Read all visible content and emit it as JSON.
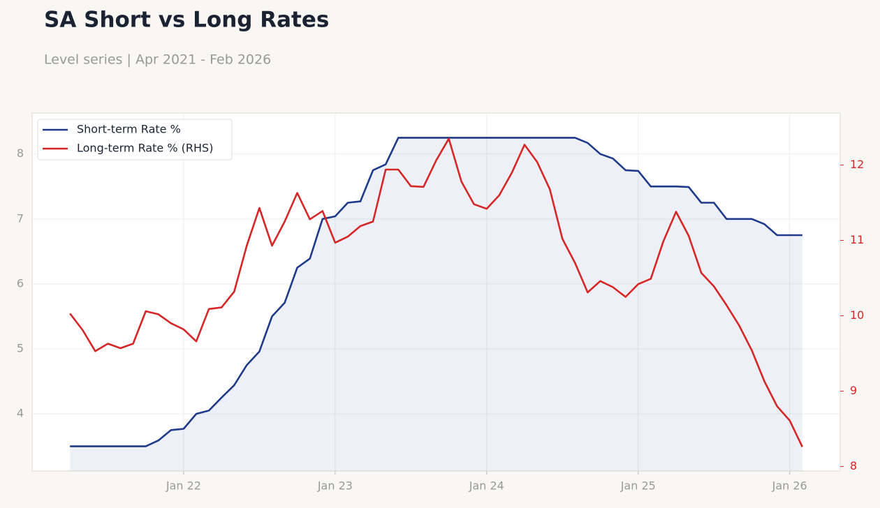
{
  "chart_data": {
    "type": "line",
    "title": "SA Short vs Long Rates",
    "subtitle": "Level series | Apr 2021 - Feb 2026",
    "x": [
      "2021-04",
      "2021-05",
      "2021-06",
      "2021-07",
      "2021-08",
      "2021-09",
      "2021-10",
      "2021-11",
      "2021-12",
      "2022-01",
      "2022-02",
      "2022-03",
      "2022-04",
      "2022-05",
      "2022-06",
      "2022-07",
      "2022-08",
      "2022-09",
      "2022-10",
      "2022-11",
      "2022-12",
      "2023-01",
      "2023-02",
      "2023-03",
      "2023-04",
      "2023-05",
      "2023-06",
      "2023-07",
      "2023-08",
      "2023-09",
      "2023-10",
      "2023-11",
      "2023-12",
      "2024-01",
      "2024-02",
      "2024-03",
      "2024-04",
      "2024-05",
      "2024-06",
      "2024-07",
      "2024-08",
      "2024-09",
      "2024-10",
      "2024-11",
      "2024-12",
      "2025-01",
      "2025-02",
      "2025-03",
      "2025-04",
      "2025-05",
      "2025-06",
      "2025-07",
      "2025-08",
      "2025-09",
      "2025-10",
      "2025-11",
      "2025-12",
      "2026-01",
      "2026-02"
    ],
    "series": [
      {
        "name": "Short-term Rate %",
        "color": "#1f3a8a",
        "fill": true,
        "values": [
          3.5,
          3.5,
          3.5,
          3.5,
          3.5,
          3.5,
          3.5,
          3.59,
          3.75,
          3.77,
          4.0,
          4.05,
          4.25,
          4.44,
          4.75,
          4.96,
          5.5,
          5.71,
          6.25,
          6.39,
          7.0,
          7.04,
          7.25,
          7.27,
          7.75,
          7.84,
          8.25,
          8.25,
          8.25,
          8.25,
          8.25,
          8.25,
          8.25,
          8.25,
          8.25,
          8.25,
          8.25,
          8.25,
          8.25,
          8.25,
          8.25,
          8.17,
          8.0,
          7.93,
          7.75,
          7.74,
          7.5,
          7.5,
          7.5,
          7.49,
          7.25,
          7.25,
          7.0,
          7.0,
          7.0,
          6.92,
          6.75,
          6.75,
          6.75
        ]
      },
      {
        "name": "Long-term Rate % (RHS)",
        "color": "#d62728",
        "axis": "y2",
        "values": [
          10.03,
          9.81,
          9.53,
          9.63,
          9.57,
          9.63,
          10.06,
          10.02,
          9.9,
          9.82,
          9.66,
          10.09,
          10.11,
          10.32,
          10.93,
          11.43,
          10.93,
          11.25,
          11.63,
          11.28,
          11.39,
          10.97,
          11.05,
          11.19,
          11.25,
          11.94,
          11.94,
          11.72,
          11.71,
          12.06,
          12.35,
          11.78,
          11.48,
          11.42,
          11.6,
          11.9,
          12.27,
          12.04,
          11.68,
          11.02,
          10.7,
          10.31,
          10.46,
          10.38,
          10.25,
          10.42,
          10.49,
          10.99,
          11.38,
          11.06,
          10.57,
          10.39,
          10.14,
          9.87,
          9.54,
          9.13,
          8.8,
          8.61,
          8.26
        ]
      }
    ],
    "xlim": [
      "2021-01",
      "2026-05"
    ],
    "xticks": [
      {
        "value": "2022-01",
        "label": "Jan 22"
      },
      {
        "value": "2023-01",
        "label": "Jan 23"
      },
      {
        "value": "2024-01",
        "label": "Jan 24"
      },
      {
        "value": "2025-01",
        "label": "Jan 25"
      },
      {
        "value": "2026-01",
        "label": "Jan 26"
      }
    ],
    "ylim": [
      3.12,
      8.63
    ],
    "yticks": [
      4,
      5,
      6,
      7,
      8
    ],
    "y2lim": [
      7.94,
      12.69
    ],
    "y2ticks": [
      8,
      9,
      10,
      11,
      12
    ],
    "grid": true,
    "legend": "upper left"
  }
}
